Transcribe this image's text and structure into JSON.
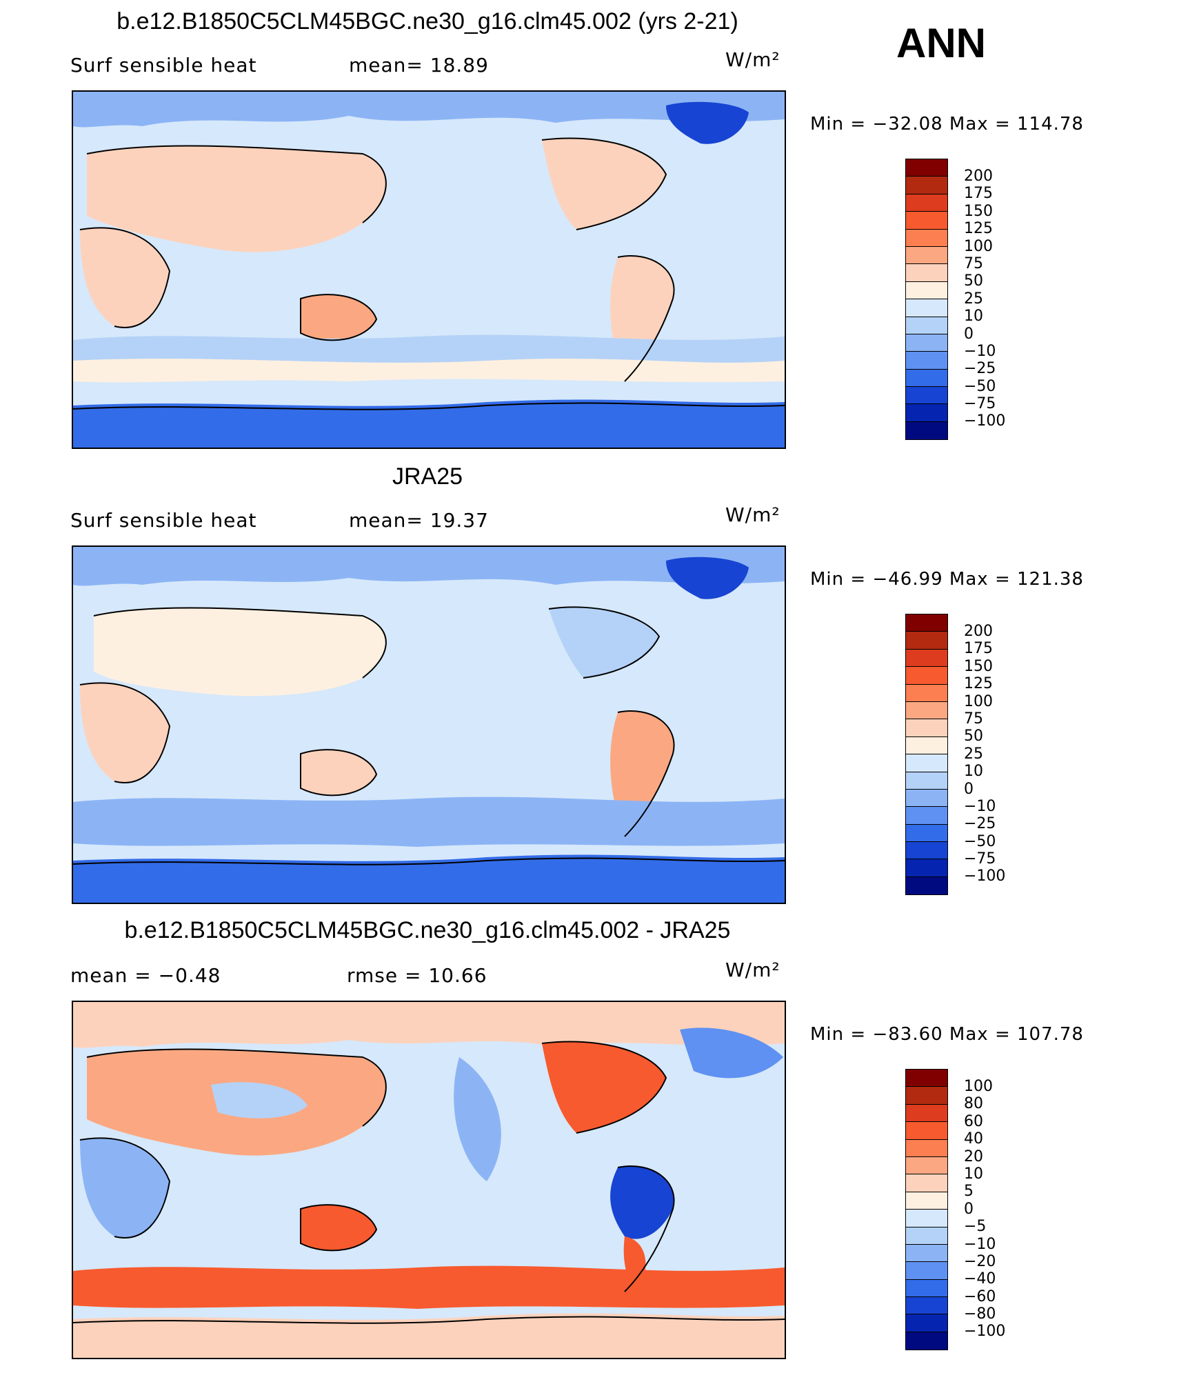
{
  "season": "ANN",
  "units": "W/m²",
  "panels": [
    {
      "title": "b.e12.B1850C5CLM45BGC.ne30_g16.clm45.002 (yrs 2-21)",
      "left_label": "Surf  sensible  heat",
      "mid_label": "mean=   18.89",
      "units": "W/m²",
      "min_max": "Min  =  −32.08  Max  =  114.78",
      "colorbar_ticks": [
        "200",
        "175",
        "150",
        "125",
        "100",
        "75",
        "50",
        "25",
        "10",
        "0",
        "−10",
        "−25",
        "−50",
        "−75",
        "−100"
      ]
    },
    {
      "title": "JRA25",
      "left_label": "Surf  sensible  heat",
      "mid_label": "mean=   19.37",
      "units": "W/m²",
      "min_max": "Min  =  −46.99  Max  =  121.38",
      "colorbar_ticks": [
        "200",
        "175",
        "150",
        "125",
        "100",
        "75",
        "50",
        "25",
        "10",
        "0",
        "−10",
        "−25",
        "−50",
        "−75",
        "−100"
      ]
    },
    {
      "title": "b.e12.B1850C5CLM45BGC.ne30_g16.clm45.002 - JRA25",
      "left_label": "mean  =    −0.48",
      "mid_label": "rmse  =    10.66",
      "units": "W/m²",
      "min_max": "Min  =  −83.60  Max  =  107.78",
      "colorbar_ticks": [
        "100",
        "80",
        "60",
        "40",
        "20",
        "10",
        "5",
        "0",
        "−5",
        "−10",
        "−20",
        "−40",
        "−60",
        "−80",
        "−100"
      ]
    }
  ],
  "colors": {
    "scale": [
      "#800000",
      "#b22a10",
      "#dd3c1e",
      "#f75a2e",
      "#fb7f50",
      "#fba882",
      "#fdd2bc",
      "#fef0e0",
      "#d6e8fb",
      "#b4d2f7",
      "#8cb4f5",
      "#5f91f2",
      "#336ce8",
      "#1744d2",
      "#0524b0",
      "#000a80"
    ]
  }
}
